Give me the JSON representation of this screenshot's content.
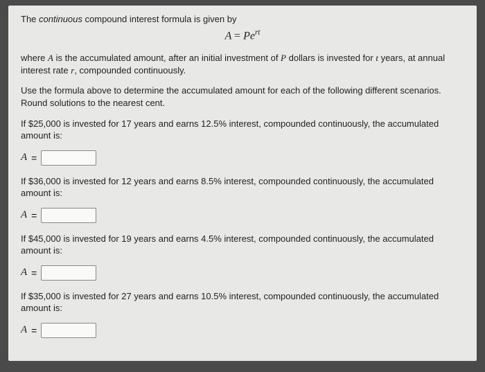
{
  "intro": {
    "prefix": "The ",
    "emph": "continuous",
    "suffix": " compound interest formula is given by"
  },
  "formula": {
    "lhs": "A",
    "eq": "=",
    "base": "Pe",
    "expo": "rt"
  },
  "where": {
    "p1": "where ",
    "A": "A",
    "p2": " is the accumulated amount, after an initial investment of ",
    "P": "P",
    "p3": " dollars is invested for ",
    "t": "t",
    "p4": " years, at annual interest rate ",
    "r": "r",
    "p5": ", compounded continuously."
  },
  "instructions": "Use the formula above to determine the accumulated amount for each of the following different scenarios. Round solutions to the nearest cent.",
  "questions": [
    {
      "text": "If $25,000 is invested for 17 years and earns 12.5% interest, compounded continuously, the accumulated amount is:",
      "label": "A",
      "eq": "="
    },
    {
      "text": "If $36,000 is invested for 12 years and earns 8.5% interest, compounded continuously, the accumulated amount is:",
      "label": "A",
      "eq": "="
    },
    {
      "text": "If $45,000 is invested for 19 years and earns 4.5% interest, compounded continuously, the accumulated amount is:",
      "label": "A",
      "eq": "="
    },
    {
      "text": "If $35,000 is invested for 27 years and earns 10.5% interest, compounded continuously, the accumulated amount is:",
      "label": "A",
      "eq": "="
    }
  ]
}
